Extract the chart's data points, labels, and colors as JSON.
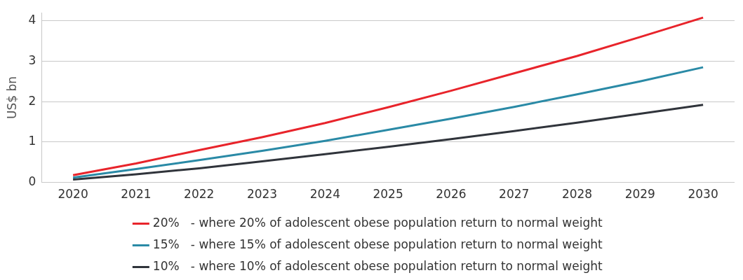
{
  "chart_data": {
    "type": "line",
    "ylabel": "US$ bn",
    "categories": [
      "2020",
      "2021",
      "2022",
      "2023",
      "2024",
      "2025",
      "2026",
      "2027",
      "2028",
      "2029",
      "2030"
    ],
    "series": [
      {
        "name": "20%   - where 20% of adolescent obese population return to normal weight",
        "color": "#e8242b",
        "values": [
          0.18,
          0.47,
          0.8,
          1.12,
          1.47,
          1.86,
          2.27,
          2.7,
          3.13,
          3.6,
          4.08
        ]
      },
      {
        "name": "15%   - where 15% of adolescent obese population return to normal weight",
        "color": "#2a8aa6",
        "values": [
          0.12,
          0.33,
          0.55,
          0.78,
          1.03,
          1.3,
          1.58,
          1.87,
          2.18,
          2.5,
          2.85
        ]
      },
      {
        "name": "10%   - where 10% of adolescent obese population return to normal weight",
        "color": "#30343b",
        "values": [
          0.07,
          0.2,
          0.35,
          0.52,
          0.7,
          0.88,
          1.07,
          1.27,
          1.48,
          1.7,
          1.92
        ]
      }
    ],
    "ylim": [
      0,
      4.2
    ],
    "yticks": [
      0,
      1,
      2,
      3,
      4
    ],
    "grid": "y",
    "legend": "bottom",
    "marker": "none",
    "line_style": "solid"
  }
}
